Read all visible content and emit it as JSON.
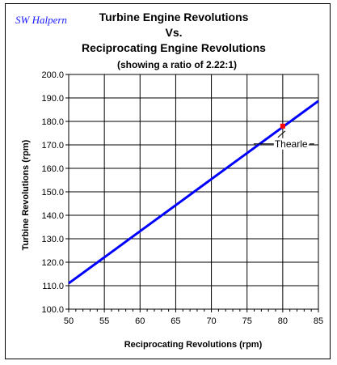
{
  "signature": "SW Halpern",
  "chart_data": {
    "type": "line",
    "title": "Turbine Engine Revolutions",
    "title_line2": "Vs.",
    "title_line3": "Reciprocating Engine Revolutions",
    "subtitle": "(showing a ratio of 2.22:1)",
    "xlabel": "Reciprocating Revolutions (rpm)",
    "ylabel": "Turbine Revolutions (rpm)",
    "xlim": [
      50,
      85
    ],
    "ylim": [
      100,
      200
    ],
    "x_ticks": [
      "50",
      "55",
      "60",
      "65",
      "70",
      "75",
      "80",
      "85"
    ],
    "y_ticks": [
      "100.0",
      "110.0",
      "120.0",
      "130.0",
      "140.0",
      "150.0",
      "160.0",
      "170.0",
      "180.0",
      "190.0",
      "200.0"
    ],
    "grid": true,
    "legend": "none",
    "series": [
      {
        "color": "#0000ff",
        "x": [
          50,
          55,
          60,
          65,
          70,
          75,
          80,
          85
        ],
        "y": [
          111.0,
          122.1,
          133.2,
          144.3,
          155.4,
          166.5,
          177.6,
          188.7
        ]
      }
    ],
    "annotations": [
      {
        "text": "Thearle",
        "x": 80,
        "y": 178,
        "marker_color": "#ff0000"
      }
    ]
  }
}
